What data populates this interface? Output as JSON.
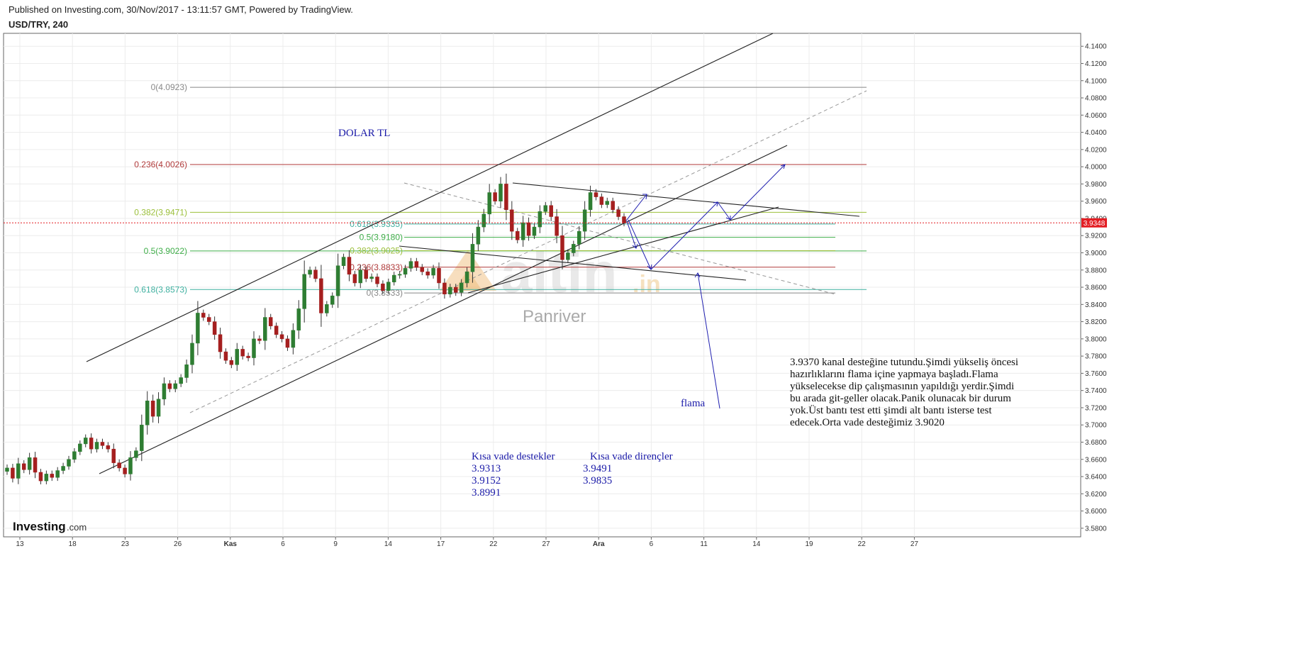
{
  "header": {
    "published": "Published on Investing.com, 30/Nov/2017 - 13:11:57 GMT, Powered by TradingView.",
    "symbol": "USD/TRY, 240"
  },
  "colors": {
    "up": "#2e7d32",
    "down": "#a51f1f",
    "price_line": "#e31e24",
    "annotation": "#1a1aa8",
    "grid": "#ececec"
  },
  "chart_data": {
    "type": "candlestick",
    "symbol": "USD/TRY",
    "interval": "240",
    "ylim": [
      3.57,
      4.155
    ],
    "y_ticks": [
      "4.1400",
      "4.1200",
      "4.1000",
      "4.0800",
      "4.0600",
      "4.0400",
      "4.0200",
      "4.0000",
      "3.9800",
      "3.9600",
      "3.9400",
      "3.9200",
      "3.9000",
      "3.8800",
      "3.8600",
      "3.8400",
      "3.8200",
      "3.8000",
      "3.7800",
      "3.7600",
      "3.7400",
      "3.7200",
      "3.7000",
      "3.6800",
      "3.6600",
      "3.6400",
      "3.6200",
      "3.6000",
      "3.5800"
    ],
    "x_ticks": [
      "13",
      "18",
      "23",
      "26",
      "Kas",
      "6",
      "9",
      "14",
      "17",
      "22",
      "27",
      "Ara",
      "6",
      "11",
      "14",
      "19",
      "22",
      "27"
    ],
    "last_price": "3.9348",
    "last_value": 3.9348,
    "closes": [
      3.65,
      3.638,
      3.655,
      3.648,
      3.662,
      3.645,
      3.635,
      3.643,
      3.639,
      3.647,
      3.652,
      3.66,
      3.669,
      3.678,
      3.685,
      3.672,
      3.68,
      3.676,
      3.672,
      3.656,
      3.65,
      3.643,
      3.662,
      3.67,
      3.7,
      3.728,
      3.71,
      3.73,
      3.748,
      3.742,
      3.748,
      3.755,
      3.77,
      3.795,
      3.83,
      3.825,
      3.82,
      3.805,
      3.785,
      3.775,
      3.77,
      3.788,
      3.78,
      3.778,
      3.8,
      3.798,
      3.825,
      3.815,
      3.805,
      3.8,
      3.79,
      3.81,
      3.835,
      3.875,
      3.88,
      3.87,
      3.83,
      3.84,
      3.85,
      3.885,
      3.895,
      3.875,
      3.865,
      3.88,
      3.87,
      3.872,
      3.864,
      3.856,
      3.866,
      3.874,
      3.875,
      3.882,
      3.89,
      3.883,
      3.878,
      3.874,
      3.882,
      3.865,
      3.852,
      3.86,
      3.854,
      3.865,
      3.878,
      3.91,
      3.93,
      3.945,
      3.97,
      3.96,
      3.98,
      3.95,
      3.925,
      3.915,
      3.935,
      3.92,
      3.93,
      3.948,
      3.955,
      3.942,
      3.92,
      3.892,
      3.9,
      3.91,
      3.925,
      3.95,
      3.97,
      3.965,
      3.956,
      3.96,
      3.95,
      3.942,
      3.9348
    ],
    "fibonacci_sets": [
      {
        "levels": [
          {
            "label": "0(4.0923)",
            "value": 4.0923,
            "color": "#888888"
          },
          {
            "label": "0.236(4.0026)",
            "value": 4.0026,
            "color": "#b03a3a"
          },
          {
            "label": "0.382(3.9471)",
            "value": 3.9471,
            "color": "#9bbf3a"
          },
          {
            "label": "0.5(3.9022)",
            "value": 3.9022,
            "color": "#3fae49"
          },
          {
            "label": "0.618(3.8573)",
            "value": 3.8573,
            "color": "#3fb0a0"
          }
        ]
      },
      {
        "levels": [
          {
            "label": "0.618(3.9335)",
            "value": 3.9335,
            "color": "#3fb0a0"
          },
          {
            "label": "0.5(3.9180)",
            "value": 3.918,
            "color": "#3fae49"
          },
          {
            "label": "0.382(3.9025)",
            "value": 3.9025,
            "color": "#9bbf3a"
          },
          {
            "label": "0.236(3.8833)",
            "value": 3.8833,
            "color": "#b03a3a"
          },
          {
            "label": "0(3.8533)",
            "value": 3.8533,
            "color": "#888888"
          }
        ]
      }
    ]
  },
  "annotations": {
    "title": "DOLAR TL",
    "flama": "flama",
    "support_header": "Kısa vade destekler",
    "resistance_header": "Kısa vade dirençler",
    "supports": [
      "3.9313",
      "3.9152",
      "3.8991"
    ],
    "resistances": [
      "3.9491",
      "3.9835"
    ],
    "commentary": [
      "3.9370 kanal desteğine tutundu.Şimdi yükseliş öncesi",
      "hazırlıklarını flama içine yapmaya başladı.Flama",
      "yükselecekse dip çalışmasının yapıldığı yerdir.Şimdi",
      "bu arada git-geller olacak.Panik olunacak bir durum",
      "yok.Üst bantı test etti şimdi alt bantı isterse test",
      "edecek.Orta vade desteğimiz 3.9020"
    ]
  },
  "watermark": {
    "brand": "altin",
    "suffix": ".in",
    "author": "Panriver"
  },
  "logo": {
    "main": "Investing",
    "suffix": ".com"
  }
}
